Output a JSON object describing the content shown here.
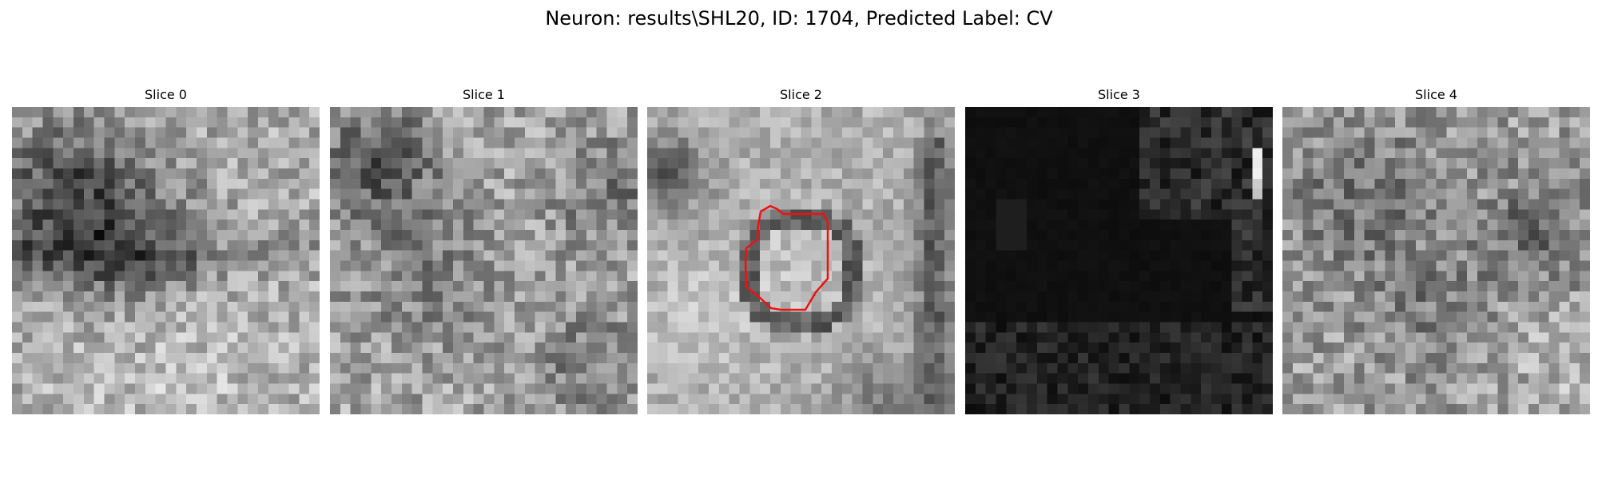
{
  "figure": {
    "title": "Neuron: results\\SHL20, ID: 1704, Predicted Label: CV"
  },
  "panels": [
    {
      "title": "Slice 0",
      "has_contour": false
    },
    {
      "title": "Slice 1",
      "has_contour": false
    },
    {
      "title": "Slice 2",
      "has_contour": true
    },
    {
      "title": "Slice 3",
      "has_contour": false
    },
    {
      "title": "Slice 4",
      "has_contour": false
    }
  ],
  "colors": {
    "contour": "#ee1111",
    "background": "#ffffff",
    "colormap": "gray"
  }
}
